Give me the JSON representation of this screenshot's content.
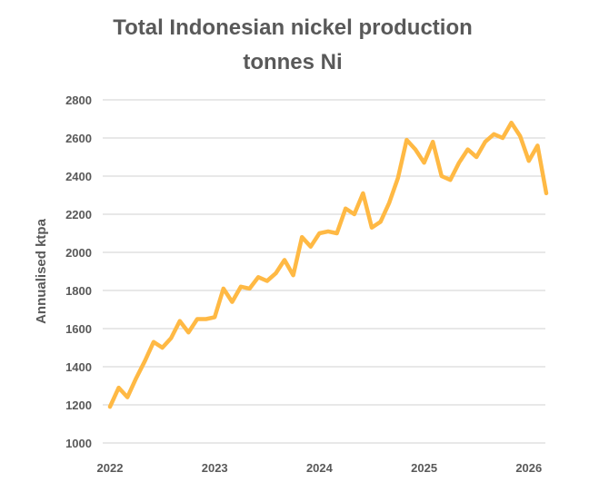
{
  "chart_data": {
    "type": "line",
    "title": "Total Indonesian nickel production",
    "subtitle": "tonnes Ni",
    "xlabel": "",
    "ylabel": "Annualised ktpa",
    "ylim": [
      1000,
      2800
    ],
    "yticks": [
      1000,
      1200,
      1400,
      1600,
      1800,
      2000,
      2200,
      2400,
      2600,
      2800
    ],
    "xticks": [
      "2022",
      "2023",
      "2024",
      "2025",
      "2026"
    ],
    "grid": true,
    "legend": "none",
    "color": "#FFB944",
    "start": "2022-01",
    "frequency": "monthly",
    "x": [
      "2022-01",
      "2022-02",
      "2022-03",
      "2022-04",
      "2022-05",
      "2022-06",
      "2022-07",
      "2022-08",
      "2022-09",
      "2022-10",
      "2022-11",
      "2022-12",
      "2023-01",
      "2023-02",
      "2023-03",
      "2023-04",
      "2023-05",
      "2023-06",
      "2023-07",
      "2023-08",
      "2023-09",
      "2023-10",
      "2023-11",
      "2023-12",
      "2024-01",
      "2024-02",
      "2024-03",
      "2024-04",
      "2024-05",
      "2024-06",
      "2024-07",
      "2024-08",
      "2024-09",
      "2024-10",
      "2024-11",
      "2024-12",
      "2025-01",
      "2025-02",
      "2025-03",
      "2025-04",
      "2025-05",
      "2025-06",
      "2025-07",
      "2025-08",
      "2025-09",
      "2025-10",
      "2025-11",
      "2025-12",
      "2026-01",
      "2026-02",
      "2026-03"
    ],
    "values": [
      1190,
      1290,
      1240,
      1340,
      1430,
      1530,
      1500,
      1550,
      1640,
      1580,
      1650,
      1650,
      1660,
      1810,
      1740,
      1820,
      1810,
      1870,
      1850,
      1890,
      1960,
      1880,
      2080,
      2030,
      2100,
      2110,
      2100,
      2230,
      2200,
      2310,
      2130,
      2160,
      2260,
      2390,
      2590,
      2540,
      2470,
      2580,
      2400,
      2380,
      2470,
      2540,
      2500,
      2580,
      2620,
      2600,
      2680,
      2610,
      2480,
      2560,
      2310
    ]
  }
}
